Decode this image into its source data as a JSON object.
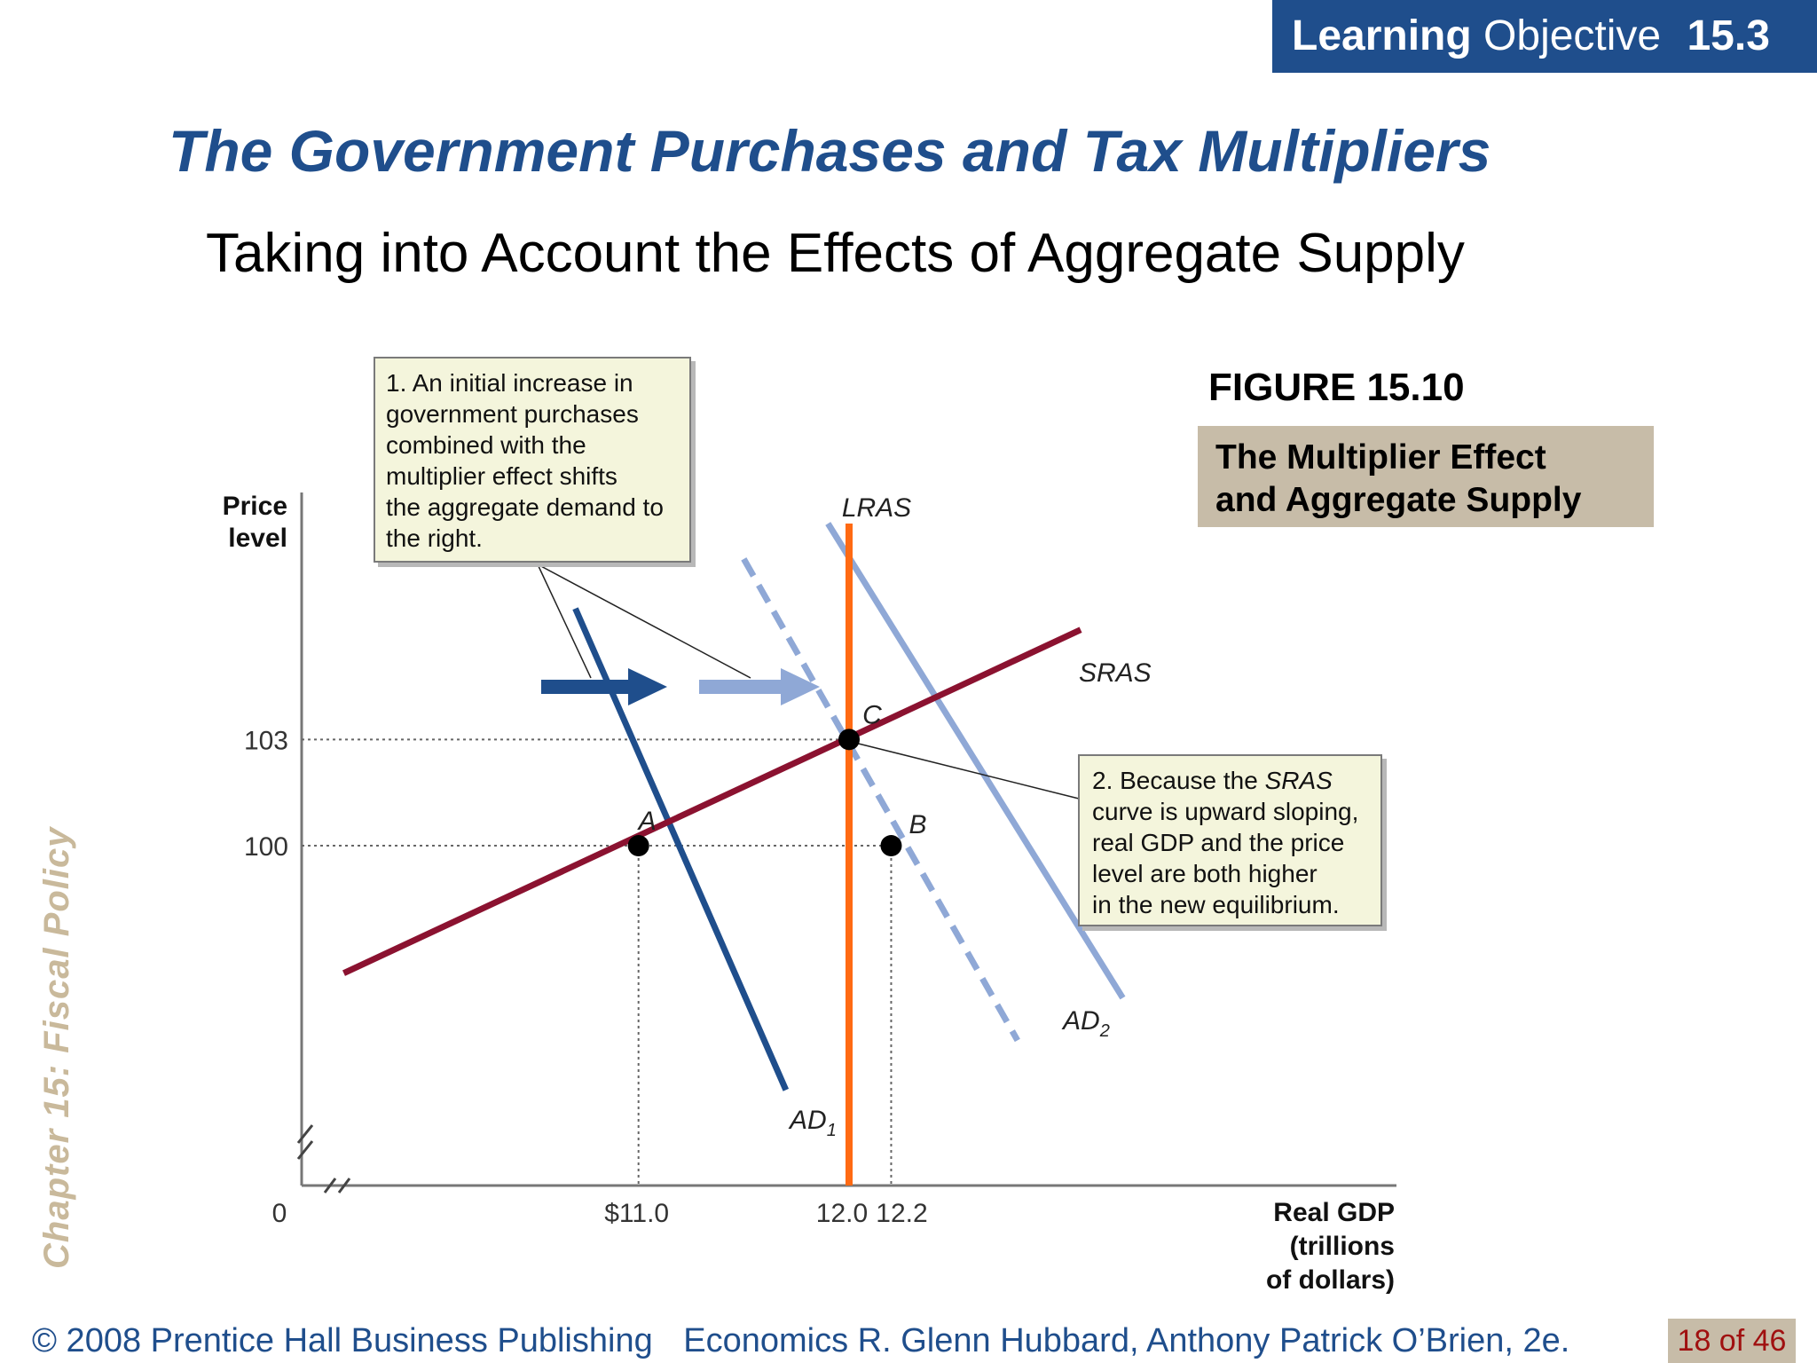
{
  "banner": {
    "bold": "Learning",
    "rest": "Objective",
    "number": "15.3"
  },
  "title": "The Government Purchases and Tax Multipliers",
  "subtitle": "Taking into Account the Effects of Aggregate Supply",
  "side_label": "Chapter 15:  Fiscal Policy",
  "figure": {
    "label": "FIGURE 15.10",
    "caption_line1": "The Multiplier Effect",
    "caption_line2": "and Aggregate Supply"
  },
  "callout1": [
    "1. An initial increase in",
    "government purchases",
    "combined with the",
    "multiplier effect shifts",
    "the aggregate demand to",
    "the right."
  ],
  "callout2": {
    "l1_pre": "2. Because the ",
    "l1_em": "SRAS",
    "lines": [
      "curve is upward sloping,",
      "real GDP and the price",
      "level are both higher",
      "in the new equilibrium."
    ]
  },
  "footer": {
    "copyright": "© 2008 Prentice Hall Business Publishing",
    "book": "Economics  R. Glenn Hubbard, Anthony Patrick O’Brien, 2e.",
    "page": "18 of 46"
  },
  "colors": {
    "brand": "#1f4e8c",
    "ad1": "#1f4e8c",
    "ad2": "#8fa8d6",
    "sras": "#8b1230",
    "lras": "#ff6a13",
    "caption_bg": "#c7bca8"
  },
  "chart_data": {
    "type": "line",
    "xlabel": [
      "Real GDP",
      "(trillions",
      "of dollars)"
    ],
    "ylabel": [
      "Price",
      "level"
    ],
    "origin_label": "0",
    "x_ticks": [
      {
        "value": 11.0,
        "label": "$11.0"
      },
      {
        "value": 12.0,
        "label": "12.0"
      },
      {
        "value": 12.2,
        "label": "12.2"
      }
    ],
    "y_ticks": [
      {
        "value": 100,
        "label": "100"
      },
      {
        "value": 103,
        "label": "103"
      }
    ],
    "xlim": [
      9.4,
      14.6
    ],
    "ylim": [
      90.4,
      109.1
    ],
    "series": [
      {
        "name": "AD1",
        "main": "AD",
        "sub": "1",
        "style": "solid",
        "color": "#1f4e8c",
        "x": [
          10.7,
          11.7
        ],
        "y": [
          106.7,
          93.1
        ]
      },
      {
        "name": "AD dashed",
        "main": "",
        "sub": "",
        "style": "dashed",
        "color": "#8fa8d6",
        "x": [
          11.5,
          12.8
        ],
        "y": [
          108.1,
          94.5
        ]
      },
      {
        "name": "AD2",
        "main": "AD",
        "sub": "2",
        "style": "solid",
        "color": "#8fa8d6",
        "x": [
          11.9,
          13.3
        ],
        "y": [
          109.1,
          95.7
        ]
      },
      {
        "name": "SRAS",
        "main": "SRAS",
        "sub": "",
        "style": "solid",
        "color": "#8b1230",
        "x": [
          9.6,
          13.1
        ],
        "y": [
          96.4,
          106.1
        ]
      },
      {
        "name": "LRAS",
        "main": "LRAS",
        "sub": "",
        "style": "solid",
        "color": "#ff6a13",
        "x": [
          12.0,
          12.0
        ],
        "y": [
          109.1,
          90.4
        ]
      }
    ],
    "points": [
      {
        "label": "A",
        "x": 11.0,
        "y": 100
      },
      {
        "label": "B",
        "x": 12.2,
        "y": 100
      },
      {
        "label": "C",
        "x": 12.0,
        "y": 103
      }
    ]
  }
}
